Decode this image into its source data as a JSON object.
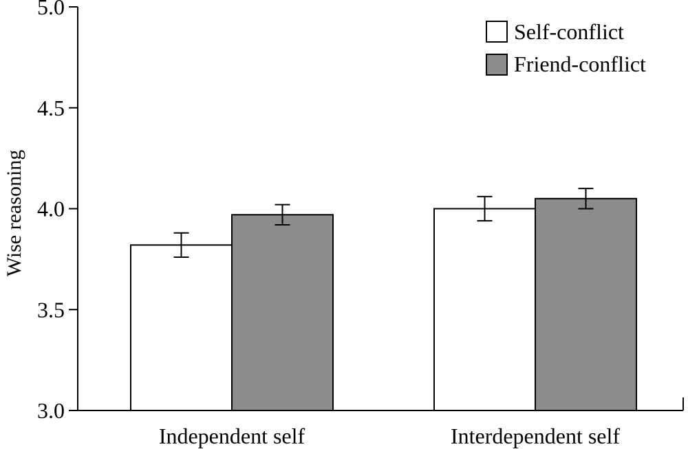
{
  "chart_data": {
    "type": "bar",
    "title": "",
    "xlabel": "",
    "ylabel": "Wise reasoning",
    "ylim": [
      3.0,
      5.0
    ],
    "yticks": [
      3.0,
      3.5,
      4.0,
      4.5,
      5.0
    ],
    "ytick_labels": [
      "3.0",
      "3.5",
      "4.0",
      "4.5",
      "5.0"
    ],
    "categories": [
      "Independent self",
      "Interdependent self"
    ],
    "series": [
      {
        "name": "Self-conflict",
        "color": "#ffffff",
        "values": [
          3.82,
          4.0
        ],
        "error": [
          0.06,
          0.06
        ]
      },
      {
        "name": "Friend-conflict",
        "color": "#8c8c8c",
        "values": [
          3.97,
          4.05
        ],
        "error": [
          0.05,
          0.05
        ]
      }
    ],
    "grid": false,
    "legend_position": "top-right"
  }
}
